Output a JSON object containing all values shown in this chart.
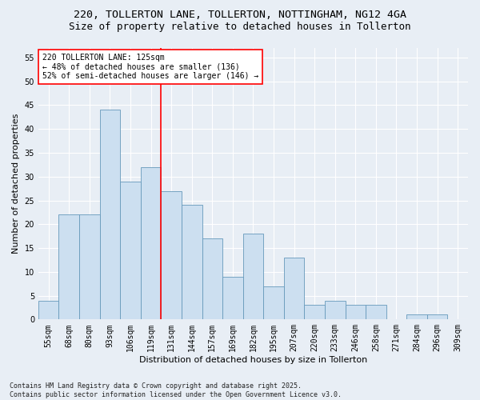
{
  "title_line1": "220, TOLLERTON LANE, TOLLERTON, NOTTINGHAM, NG12 4GA",
  "title_line2": "Size of property relative to detached houses in Tollerton",
  "xlabel": "Distribution of detached houses by size in Tollerton",
  "ylabel": "Number of detached properties",
  "categories": [
    "55sqm",
    "68sqm",
    "80sqm",
    "93sqm",
    "106sqm",
    "119sqm",
    "131sqm",
    "144sqm",
    "157sqm",
    "169sqm",
    "182sqm",
    "195sqm",
    "207sqm",
    "220sqm",
    "233sqm",
    "246sqm",
    "258sqm",
    "271sqm",
    "284sqm",
    "296sqm",
    "309sqm"
  ],
  "values": [
    4,
    22,
    22,
    44,
    29,
    32,
    27,
    24,
    17,
    9,
    18,
    7,
    13,
    3,
    4,
    3,
    3,
    0,
    1,
    1,
    0
  ],
  "bar_color": "#ccdff0",
  "bar_edge_color": "#6699bb",
  "background_color": "#e8eef5",
  "grid_color": "#ffffff",
  "vline_color": "red",
  "annotation_text": "220 TOLLERTON LANE: 125sqm\n← 48% of detached houses are smaller (136)\n52% of semi-detached houses are larger (146) →",
  "annotation_box_color": "white",
  "annotation_box_edge": "red",
  "ylim": [
    0,
    57
  ],
  "yticks": [
    0,
    5,
    10,
    15,
    20,
    25,
    30,
    35,
    40,
    45,
    50,
    55
  ],
  "footnote": "Contains HM Land Registry data © Crown copyright and database right 2025.\nContains public sector information licensed under the Open Government Licence v3.0.",
  "title_fontsize": 9.5,
  "subtitle_fontsize": 9,
  "tick_fontsize": 7,
  "label_fontsize": 8,
  "annot_fontsize": 7,
  "footnote_fontsize": 6
}
